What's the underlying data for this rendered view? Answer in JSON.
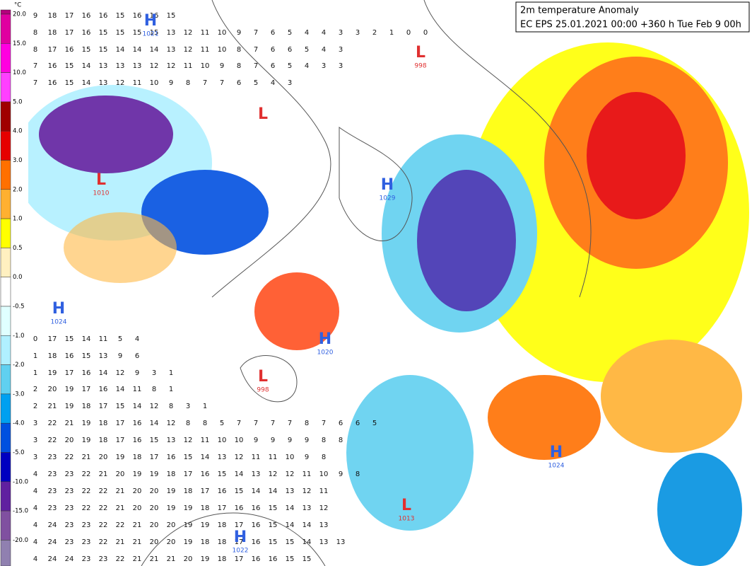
{
  "title": {
    "line1": "2m temperature Anomaly",
    "line2": "EC EPS 25.01.2021 00:00 +360 h Tue Feb 9 00h"
  },
  "colorbar": {
    "unit": "°C",
    "labels": [
      "20.0",
      "15.0",
      "10.0",
      "5.0",
      "4.0",
      "3.0",
      "2.0",
      "1.0",
      "0.5",
      "0.0",
      "-0.5",
      "-1.0",
      "-2.0",
      "-3.0",
      "-4.0",
      "-5.0",
      "-10.0",
      "-15.0",
      "-20.0"
    ],
    "colors": [
      "#b4007d",
      "#e000a0",
      "#ff00e0",
      "#ff40ff",
      "#a00000",
      "#e60000",
      "#ff7000",
      "#ffb030",
      "#ffff00",
      "#fff0c0",
      "#ffffff",
      "#e0ffff",
      "#b0f0ff",
      "#60d0f0",
      "#00a0f0",
      "#0050e0",
      "#0000c0",
      "#6020a0",
      "#8050a0",
      "#9080b0"
    ]
  },
  "pressure_centers": [
    {
      "type": "H",
      "value": "1021"
    },
    {
      "type": "L",
      "value": "998"
    },
    {
      "type": "L",
      "value": ""
    },
    {
      "type": "L",
      "value": "1010"
    },
    {
      "type": "H",
      "value": "1029"
    },
    {
      "type": "H",
      "value": "1024"
    },
    {
      "type": "L",
      "value": "998"
    },
    {
      "type": "H",
      "value": "1020"
    },
    {
      "type": "L",
      "value": "1013"
    },
    {
      "type": "H",
      "value": "1022"
    },
    {
      "type": "H",
      "value": "1024"
    }
  ],
  "grid_rows": [
    [
      9,
      18,
      17,
      16,
      16,
      15,
      16,
      16,
      15
    ],
    [
      8,
      18,
      17,
      16,
      15,
      15,
      15,
      15,
      13,
      12,
      11,
      10,
      9,
      7,
      6,
      5,
      4,
      4,
      3,
      3,
      2,
      1,
      0,
      0
    ],
    [
      8,
      17,
      16,
      15,
      15,
      14,
      14,
      14,
      13,
      12,
      11,
      10,
      8,
      7,
      6,
      6,
      5,
      4,
      3
    ],
    [
      7,
      16,
      15,
      14,
      13,
      13,
      13,
      12,
      12,
      11,
      10,
      9,
      8,
      7,
      6,
      5,
      4,
      3,
      3
    ],
    [
      7,
      16,
      15,
      14,
      13,
      12,
      11,
      10,
      9,
      8,
      7,
      7,
      6,
      5,
      4,
      3
    ],
    [
      0,
      17,
      15,
      14,
      11,
      5,
      4
    ],
    [
      1,
      18,
      16,
      15,
      13,
      9,
      6
    ],
    [
      1,
      19,
      17,
      16,
      14,
      12,
      9,
      3,
      1
    ],
    [
      2,
      20,
      19,
      17,
      16,
      14,
      11,
      8,
      1
    ],
    [
      2,
      21,
      19,
      18,
      17,
      15,
      14,
      12,
      8,
      3,
      1
    ],
    [
      3,
      22,
      21,
      19,
      18,
      17,
      16,
      14,
      12,
      8,
      8,
      5,
      7,
      7,
      7,
      7,
      8,
      7,
      6,
      6,
      5
    ],
    [
      3,
      22,
      20,
      19,
      18,
      17,
      16,
      15,
      13,
      12,
      11,
      10,
      10,
      9,
      9,
      9,
      9,
      8,
      8
    ],
    [
      3,
      23,
      22,
      21,
      20,
      19,
      18,
      17,
      16,
      15,
      14,
      13,
      12,
      11,
      11,
      10,
      9,
      8
    ],
    [
      4,
      23,
      23,
      22,
      21,
      20,
      19,
      19,
      18,
      17,
      16,
      15,
      14,
      13,
      12,
      12,
      11,
      10,
      9,
      8
    ],
    [
      4,
      23,
      23,
      22,
      22,
      21,
      20,
      20,
      19,
      18,
      17,
      16,
      15,
      14,
      14,
      13,
      12,
      11
    ],
    [
      4,
      23,
      23,
      22,
      22,
      21,
      20,
      20,
      19,
      19,
      18,
      17,
      16,
      16,
      15,
      14,
      13,
      12
    ],
    [
      4,
      24,
      23,
      23,
      22,
      22,
      21,
      20,
      20,
      19,
      19,
      18,
      17,
      16,
      15,
      14,
      14,
      13
    ],
    [
      4,
      24,
      23,
      23,
      22,
      21,
      21,
      20,
      20,
      19,
      18,
      18,
      17,
      16,
      15,
      15,
      14,
      13,
      13
    ],
    [
      4,
      24,
      24,
      23,
      23,
      22,
      21,
      21,
      21,
      20,
      19,
      18,
      17,
      16,
      16,
      15,
      15
    ]
  ]
}
